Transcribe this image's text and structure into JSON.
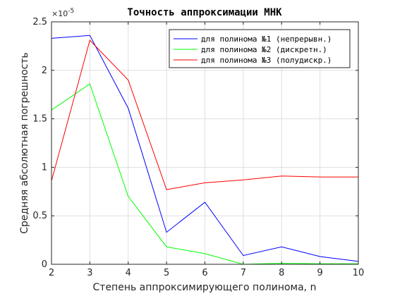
{
  "chart_data": {
    "type": "line",
    "title": "Точность аппроксимации МНК",
    "xlabel": "Степень аппроксимирующего полинома, n",
    "ylabel": "Средняя абсолютная погрешность",
    "y_exponent_base": "×10",
    "y_exponent_power": "-5",
    "xlim": [
      2,
      10
    ],
    "ylim": [
      0,
      2.5
    ],
    "xticks": [
      "2",
      "3",
      "4",
      "5",
      "6",
      "7",
      "8",
      "9",
      "10"
    ],
    "yticks": [
      "0",
      "0.5",
      "1",
      "1.5",
      "2",
      "2.5"
    ],
    "grid": true,
    "legend_position": "top-right",
    "x": [
      2,
      3,
      4,
      5,
      6,
      7,
      8,
      9,
      10
    ],
    "series": [
      {
        "name": "для полинома №1 (непрерывн.)",
        "color": "#0000ff",
        "values": [
          2.33,
          2.36,
          1.61,
          0.33,
          0.64,
          0.09,
          0.18,
          0.08,
          0.03
        ]
      },
      {
        "name": "для полинома №2 (дискретн.)",
        "color": "#00ff00",
        "values": [
          1.59,
          1.86,
          0.7,
          0.18,
          0.11,
          0.0,
          0.01,
          0.005,
          0.005
        ]
      },
      {
        "name": "для полинома №3 (полудискр.)",
        "color": "#ff0000",
        "values": [
          0.86,
          2.31,
          1.9,
          0.77,
          0.84,
          0.87,
          0.91,
          0.9,
          0.9
        ]
      }
    ]
  }
}
